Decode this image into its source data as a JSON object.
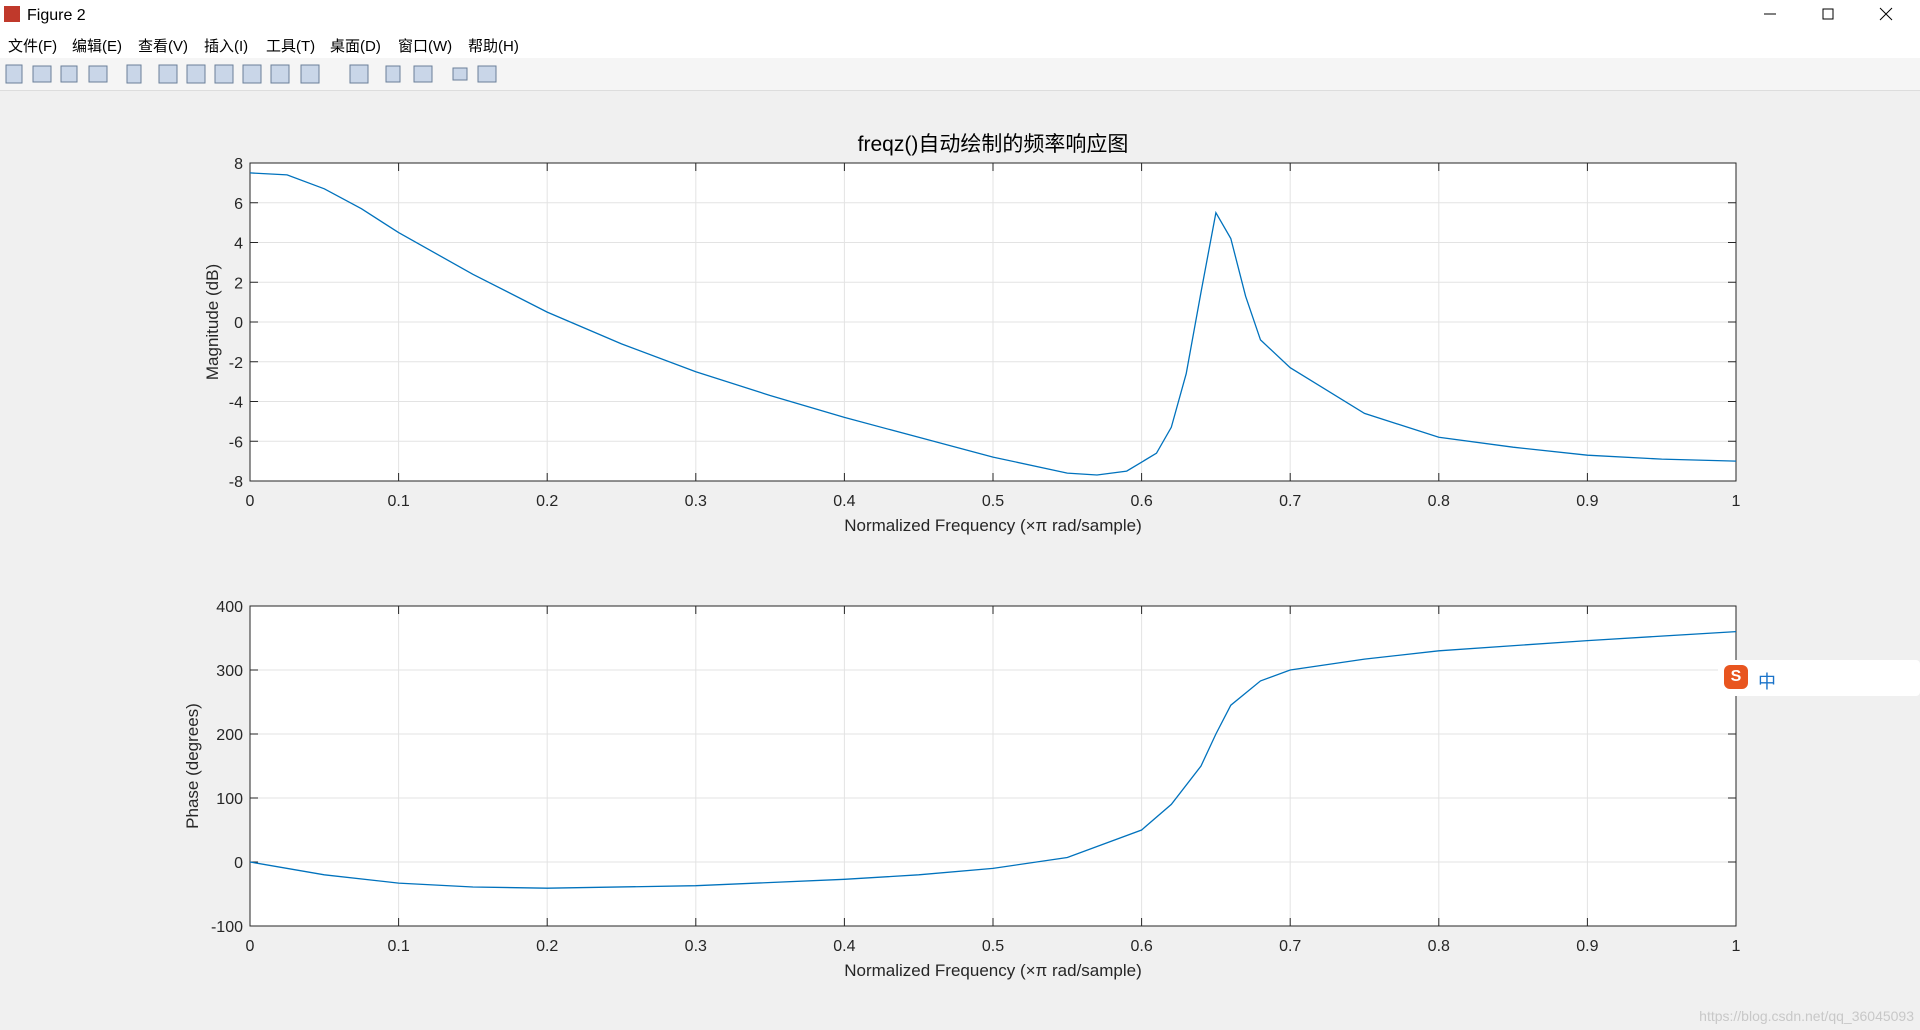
{
  "window": {
    "title": "Figure 2",
    "menu": [
      "文件(F)",
      "编辑(E)",
      "查看(V)",
      "插入(I)",
      "工具(T)",
      "桌面(D)",
      "窗口(W)",
      "帮助(H)"
    ],
    "ime": "中",
    "watermark": "https://blog.csdn.net/qq_36045093"
  },
  "chart_data": [
    {
      "type": "line",
      "title": "freqz()自动绘制的频率响应图",
      "xlabel": "Normalized Frequency  (×π rad/sample)",
      "ylabel": "Magnitude (dB)",
      "x": [
        0,
        0.025,
        0.05,
        0.075,
        0.1,
        0.15,
        0.2,
        0.25,
        0.3,
        0.35,
        0.4,
        0.45,
        0.5,
        0.55,
        0.57,
        0.59,
        0.61,
        0.62,
        0.63,
        0.64,
        0.65,
        0.66,
        0.67,
        0.68,
        0.7,
        0.75,
        0.8,
        0.85,
        0.9,
        0.95,
        1
      ],
      "values": [
        7.5,
        7.4,
        6.7,
        5.7,
        4.5,
        2.4,
        0.5,
        -1.1,
        -2.5,
        -3.7,
        -4.8,
        -5.8,
        -6.8,
        -7.6,
        -7.7,
        -7.5,
        -6.6,
        -5.3,
        -2.6,
        1.5,
        5.5,
        4.2,
        1.3,
        -0.9,
        -2.3,
        -4.6,
        -5.8,
        -6.3,
        -6.7,
        -6.9,
        -7.0
      ],
      "color": "#0072bd",
      "grid": true,
      "xlim": [
        0,
        1
      ],
      "xticks": [
        0,
        0.1,
        0.2,
        0.3,
        0.4,
        0.5,
        0.6,
        0.7,
        0.8,
        0.9,
        1
      ],
      "ylim": [
        -8,
        8
      ],
      "yticks": [
        -8,
        -6,
        -4,
        -2,
        0,
        2,
        4,
        6,
        8
      ]
    },
    {
      "type": "line",
      "xlabel": "Normalized Frequency  (×π rad/sample)",
      "ylabel": "Phase (degrees)",
      "x": [
        0,
        0.05,
        0.1,
        0.15,
        0.2,
        0.3,
        0.4,
        0.45,
        0.5,
        0.55,
        0.6,
        0.62,
        0.64,
        0.65,
        0.66,
        0.68,
        0.7,
        0.75,
        0.8,
        0.9,
        1
      ],
      "values": [
        0,
        -20,
        -33,
        -39,
        -41,
        -37,
        -27,
        -20,
        -10,
        7,
        50,
        90,
        150,
        200,
        245,
        283,
        300,
        317,
        330,
        346,
        360
      ],
      "color": "#0072bd",
      "grid": true,
      "xlim": [
        0,
        1
      ],
      "xticks": [
        0,
        0.1,
        0.2,
        0.3,
        0.4,
        0.5,
        0.6,
        0.7,
        0.8,
        0.9,
        1
      ],
      "ylim": [
        -100,
        400
      ],
      "yticks": [
        -100,
        0,
        100,
        200,
        300,
        400
      ]
    }
  ]
}
